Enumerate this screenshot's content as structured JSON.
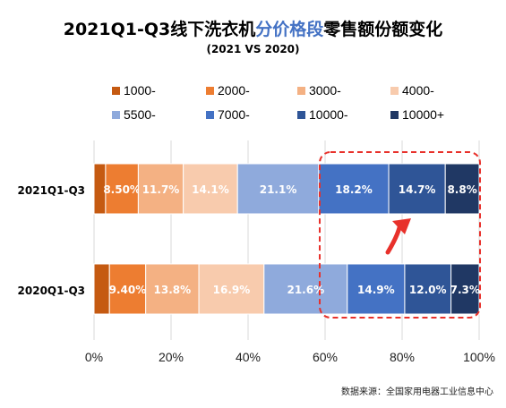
{
  "chart_data": {
    "type": "bar",
    "orientation": "horizontal",
    "stacked": true,
    "title_parts": [
      "2021Q1-Q3线下洗衣机",
      "分价格段",
      "零售额份额变化"
    ],
    "subtitle": "(2021 VS 2020)",
    "categories": [
      "2021Q1-Q3",
      "2020Q1-Q3"
    ],
    "series": [
      {
        "name": "1000-",
        "color": "#c55a11",
        "values": [
          3.0,
          4.0
        ]
      },
      {
        "name": "2000-",
        "color": "#ed7d31",
        "values": [
          8.5,
          9.4
        ]
      },
      {
        "name": "3000-",
        "color": "#f4b183",
        "values": [
          11.7,
          13.8
        ]
      },
      {
        "name": "4000-",
        "color": "#f8cbad",
        "values": [
          14.1,
          16.9
        ]
      },
      {
        "name": "5500-",
        "color": "#8faadc",
        "values": [
          21.1,
          21.6
        ]
      },
      {
        "name": "7000-",
        "color": "#4472c4",
        "values": [
          18.2,
          14.9
        ]
      },
      {
        "name": "10000-",
        "color": "#2f5597",
        "values": [
          14.7,
          12.0
        ]
      },
      {
        "name": "10000+",
        "color": "#203864",
        "values": [
          8.8,
          7.3
        ]
      }
    ],
    "data_labels": [
      [
        null,
        "8.50%",
        "11.7%",
        "14.1%",
        "21.1%",
        "18.2%",
        "14.7%",
        "8.8%"
      ],
      [
        null,
        "9.40%",
        "13.8%",
        "16.9%",
        "21.6%",
        "14.9%",
        "12.0%",
        "7.3%"
      ]
    ],
    "xticks": [
      "0%",
      "20%",
      "40%",
      "60%",
      "80%",
      "100%"
    ],
    "xlim": [
      0,
      100
    ],
    "grid": true,
    "legend_position": "top",
    "annotation": "dashed red highlight around 7000- to 10000+ segments with red arrow"
  },
  "source": "数据来源：全国家用电器工业信息中心"
}
